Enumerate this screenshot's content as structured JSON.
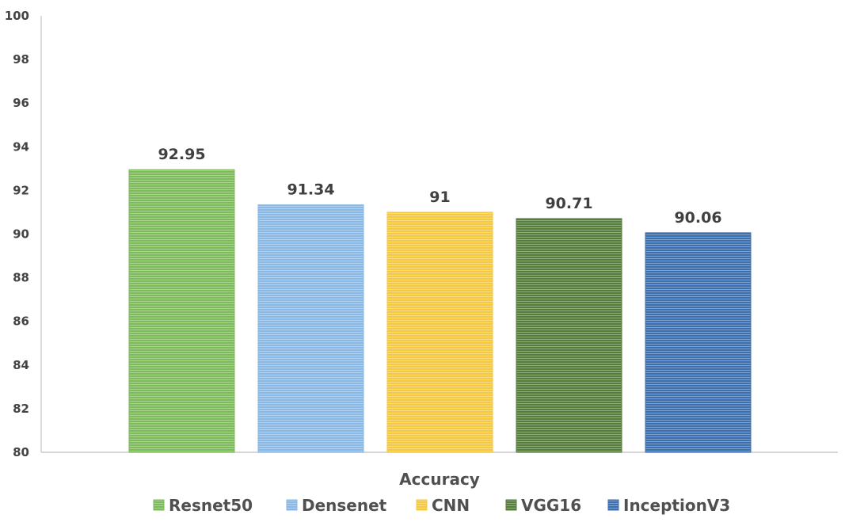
{
  "chart_data": {
    "type": "bar",
    "xlabel": "Accuracy",
    "ylim": [
      80,
      100
    ],
    "y_ticks": [
      "80",
      "82",
      "84",
      "86",
      "88",
      "90",
      "92",
      "94",
      "96",
      "98",
      "100"
    ],
    "grid": false,
    "legend_position": "bottom",
    "data_labels": [
      "92.95",
      "91.34",
      "91",
      "90.71",
      "90.06"
    ],
    "series": [
      {
        "name": "Resnet50",
        "values": [
          92.95
        ],
        "color": "#7dba5a"
      },
      {
        "name": "Densenet",
        "values": [
          91.34
        ],
        "color": "#8ab8e4"
      },
      {
        "name": "CNN",
        "values": [
          91
        ],
        "color": "#f5c842"
      },
      {
        "name": "VGG16",
        "values": [
          90.71
        ],
        "color": "#567d3c"
      },
      {
        "name": "InceptionV3",
        "values": [
          90.06
        ],
        "color": "#3c6fad"
      }
    ]
  }
}
